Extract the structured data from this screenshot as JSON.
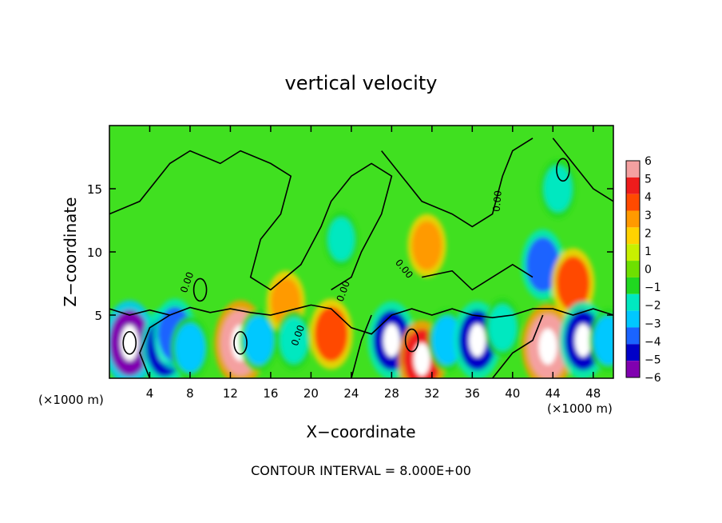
{
  "chart_data": {
    "type": "heatmap",
    "title": "vertical velocity",
    "xlabel": "X−coordinate",
    "ylabel": "Z−coordinate",
    "x_unit_left": "(×1000 m)",
    "x_unit_right": "(×1000 m)",
    "xlim": [
      0,
      50
    ],
    "ylim": [
      0,
      20
    ],
    "x_ticks": [
      4,
      8,
      12,
      16,
      20,
      24,
      28,
      32,
      36,
      40,
      44,
      48
    ],
    "y_ticks": [
      5,
      10,
      15
    ],
    "footer": "CONTOUR INTERVAL = 8.000E+00",
    "contour_label": "0.00",
    "colorbar": {
      "labels": [
        "6",
        "5",
        "4",
        "3",
        "2",
        "1",
        "0",
        "−1",
        "−2",
        "−3",
        "−4",
        "−5",
        "−6"
      ],
      "levels": [
        6,
        5,
        4,
        3,
        2,
        1,
        0,
        -1,
        -2,
        -3,
        -4,
        -5,
        -6
      ],
      "colors": [
        "#f4a0a0",
        "#ee1c1c",
        "#ff4a00",
        "#ff9a00",
        "#ffd200",
        "#c8f000",
        "#6ee000",
        "#20d820",
        "#00e8c0",
        "#00c8ff",
        "#1a64ff",
        "#0000c8",
        "#8000b0"
      ]
    },
    "background_color": "#40e020",
    "cells": [
      {
        "x": 2,
        "z": 2.8,
        "w": -6
      },
      {
        "x": 5.5,
        "z": 2.5,
        "w": -5
      },
      {
        "x": 6.5,
        "z": 3.5,
        "w": -4
      },
      {
        "x": 8,
        "z": 2.4,
        "w": -3
      },
      {
        "x": 13,
        "z": 2.8,
        "w": 6
      },
      {
        "x": 14.8,
        "z": 3,
        "w": -3
      },
      {
        "x": 17.5,
        "z": 6,
        "w": 3
      },
      {
        "x": 18.3,
        "z": 3,
        "w": -2.5
      },
      {
        "x": 22,
        "z": 3.5,
        "w": 4
      },
      {
        "x": 23,
        "z": 11,
        "w": -2
      },
      {
        "x": 28,
        "z": 3,
        "w": -5
      },
      {
        "x": 31,
        "z": 1.5,
        "w": 5
      },
      {
        "x": 31.5,
        "z": 10.5,
        "w": 3
      },
      {
        "x": 33.5,
        "z": 3,
        "w": -3
      },
      {
        "x": 36.5,
        "z": 3,
        "w": -5
      },
      {
        "x": 39,
        "z": 4,
        "w": -2.5
      },
      {
        "x": 43.5,
        "z": 2.5,
        "w": 6
      },
      {
        "x": 43,
        "z": 9,
        "w": -4
      },
      {
        "x": 46,
        "z": 7.5,
        "w": 4
      },
      {
        "x": 47,
        "z": 3,
        "w": -5
      },
      {
        "x": 49.5,
        "z": 3,
        "w": -3
      },
      {
        "x": 44.5,
        "z": 15,
        "w": -2.5
      }
    ]
  }
}
